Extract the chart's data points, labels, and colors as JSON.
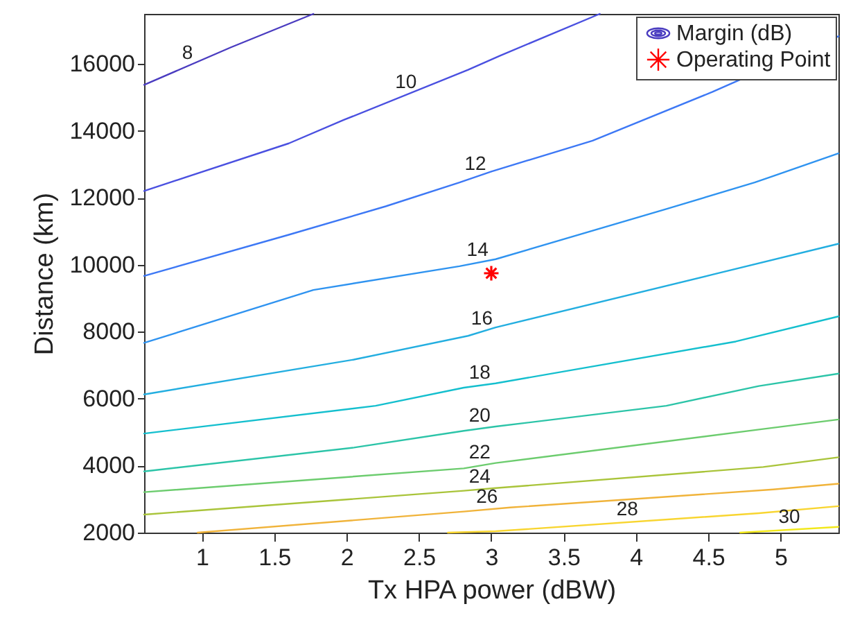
{
  "chart_data": {
    "type": "line",
    "xlabel": "Tx HPA power (dBW)",
    "ylabel": "Distance (km)",
    "xlim": [
      0.6,
      5.4
    ],
    "ylim": [
      2000,
      17500
    ],
    "xticks": [
      1,
      1.5,
      2,
      2.5,
      3,
      3.5,
      4,
      4.5,
      5
    ],
    "yticks": [
      2000,
      4000,
      6000,
      8000,
      10000,
      12000,
      14000,
      16000
    ],
    "grid": false,
    "legend": "top right",
    "line_style": "solid",
    "annotations": [
      "Margin (dB)"
    ],
    "series": [
      {
        "name": "8",
        "color": "#4a3cc0",
        "x": [
          0.6,
          1.2,
          1.77
        ],
        "values": [
          15380,
          16500,
          17500
        ]
      },
      {
        "name": "10",
        "color": "#4a50e0",
        "x": [
          0.6,
          1.6,
          1.98,
          2.84,
          3.06,
          3.75
        ],
        "values": [
          12210,
          13630,
          14330,
          15830,
          16250,
          17500
        ]
      },
      {
        "name": "12",
        "color": "#3d78f5",
        "x": [
          0.6,
          1.6,
          2.27,
          2.78,
          3.0,
          3.7,
          4.53,
          5.4
        ],
        "values": [
          9670,
          10900,
          11750,
          12460,
          12790,
          13710,
          15170,
          16830
        ]
      },
      {
        "name": "14",
        "color": "#2f93f0",
        "x": [
          0.6,
          1.77,
          2.78,
          3.03,
          4.21,
          4.82,
          5.4
        ],
        "values": [
          7670,
          9250,
          9960,
          10170,
          11670,
          12460,
          13330
        ]
      },
      {
        "name": "16",
        "color": "#23aee0",
        "x": [
          0.6,
          2.05,
          2.84,
          3.03,
          4.53,
          5.4
        ],
        "values": [
          6130,
          7170,
          7880,
          8130,
          9710,
          10630
        ]
      },
      {
        "name": "18",
        "color": "#14bfce",
        "x": [
          0.6,
          2.2,
          2.81,
          3.03,
          4.69,
          5.4
        ],
        "values": [
          4960,
          5790,
          6330,
          6460,
          7710,
          8460
        ]
      },
      {
        "name": "20",
        "color": "#2cc4a8",
        "x": [
          0.6,
          2.05,
          2.81,
          3.03,
          4.21,
          4.85,
          5.4
        ],
        "values": [
          3830,
          4540,
          5040,
          5170,
          5790,
          6380,
          6750
        ]
      },
      {
        "name": "22",
        "color": "#6ccc6e",
        "x": [
          0.6,
          2.81,
          3.03,
          4.85,
          5.4
        ],
        "values": [
          3210,
          3920,
          4080,
          5080,
          5380
        ]
      },
      {
        "name": "24",
        "color": "#a9c43a",
        "x": [
          0.6,
          2.81,
          3.03,
          4.88,
          5.4
        ],
        "values": [
          2540,
          3250,
          3330,
          3960,
          4250
        ]
      },
      {
        "name": "26",
        "color": "#f0b33a",
        "x": [
          0.97,
          2.81,
          3.13,
          4.95,
          5.4
        ],
        "values": [
          2000,
          2630,
          2750,
          3290,
          3460
        ]
      },
      {
        "name": "28",
        "color": "#f8d530",
        "x": [
          2.7,
          3.03,
          4.85,
          5.4
        ],
        "values": [
          2000,
          2040,
          2580,
          2790
        ]
      },
      {
        "name": "30",
        "color": "#f2e81a",
        "x": [
          4.72,
          5.4
        ],
        "values": [
          2000,
          2170
        ]
      },
      {
        "name": "Operating Point",
        "type": "scatter",
        "marker": "cross",
        "color": "#ff0000",
        "x": [
          3
        ],
        "values": [
          9750
        ]
      }
    ]
  }
}
